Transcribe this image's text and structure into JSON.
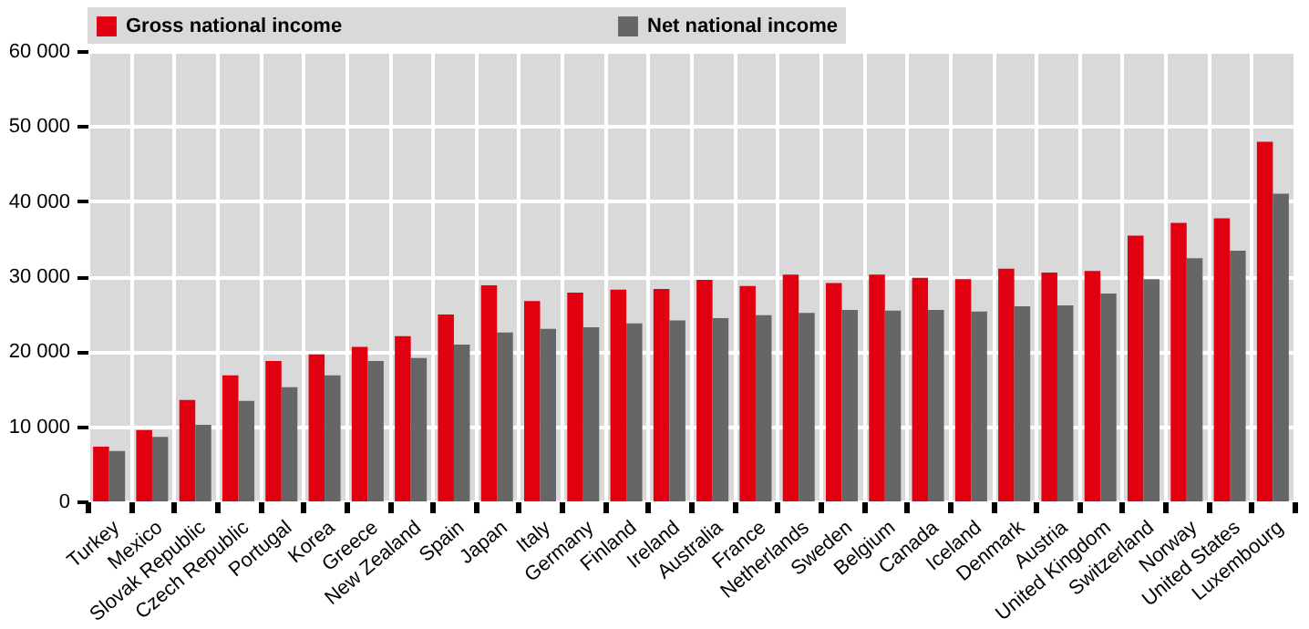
{
  "chart_data": {
    "type": "bar",
    "categories": [
      "Turkey",
      "Mexico",
      "Slovak Republic",
      "Czech Republic",
      "Portugal",
      "Korea",
      "Greece",
      "New Zealand",
      "Spain",
      "Japan",
      "Italy",
      "Germany",
      "Finland",
      "Ireland",
      "Australia",
      "France",
      "Netherlands",
      "Sweden",
      "Belgium",
      "Canada",
      "Iceland",
      "Denmark",
      "Austria",
      "United Kingdom",
      "Switzerland",
      "Norway",
      "United States",
      "Luxembourg"
    ],
    "series": [
      {
        "name": "Gross national income",
        "color": "#e0000f",
        "values": [
          7300,
          9500,
          13500,
          16800,
          18700,
          19600,
          20600,
          22000,
          24900,
          28800,
          26700,
          27800,
          28200,
          28300,
          29500,
          28700,
          30200,
          29100,
          30200,
          29800,
          29600,
          31000,
          30500,
          30700,
          35400,
          37100,
          37700,
          47900
        ]
      },
      {
        "name": "Net national income",
        "color": "#666666",
        "values": [
          6700,
          8600,
          10200,
          13400,
          15200,
          16800,
          18700,
          19100,
          20900,
          22500,
          23000,
          23200,
          23700,
          24100,
          24400,
          24800,
          25100,
          25500,
          25400,
          25500,
          25300,
          26000,
          26100,
          27700,
          29600,
          32400,
          33400,
          41000
        ]
      }
    ],
    "ylim": [
      0,
      60000
    ],
    "yticks": [
      {
        "value": 0,
        "label": "0"
      },
      {
        "value": 10000,
        "label": "10 000"
      },
      {
        "value": 20000,
        "label": "20 000"
      },
      {
        "value": 30000,
        "label": "30 000"
      },
      {
        "value": 40000,
        "label": "40 000"
      },
      {
        "value": 50000,
        "label": "50 000"
      },
      {
        "value": 60000,
        "label": "60 000"
      }
    ],
    "grid": true,
    "legend": "top"
  }
}
